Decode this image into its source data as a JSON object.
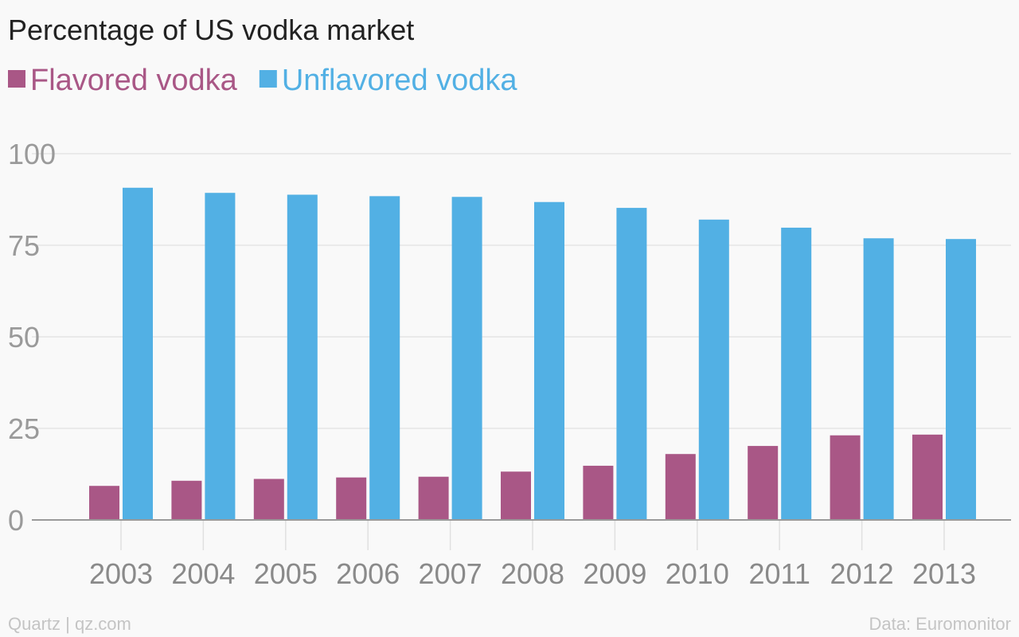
{
  "chart_data": {
    "type": "bar",
    "title": "Percentage of US vodka market",
    "categories": [
      "2003",
      "2004",
      "2005",
      "2006",
      "2007",
      "2008",
      "2009",
      "2010",
      "2011",
      "2012",
      "2013"
    ],
    "series": [
      {
        "name": "Flavored vodka",
        "color": "#a95786",
        "values": [
          9.3,
          10.7,
          11.2,
          11.6,
          11.8,
          13.2,
          14.8,
          18.0,
          20.2,
          23.1,
          23.3
        ]
      },
      {
        "name": "Unflavored vodka",
        "color": "#52b0e4",
        "values": [
          90.7,
          89.3,
          88.8,
          88.4,
          88.2,
          86.8,
          85.2,
          82.0,
          79.8,
          76.9,
          76.7
        ]
      }
    ],
    "ylim": [
      0,
      100
    ],
    "yticks": [
      0,
      25,
      50,
      75,
      100
    ],
    "grid": true,
    "legend_position": "top-left",
    "xlabel": "",
    "ylabel": ""
  },
  "footer": {
    "source_left": "Quartz | qz.com",
    "source_right": "Data: Euromonitor"
  }
}
